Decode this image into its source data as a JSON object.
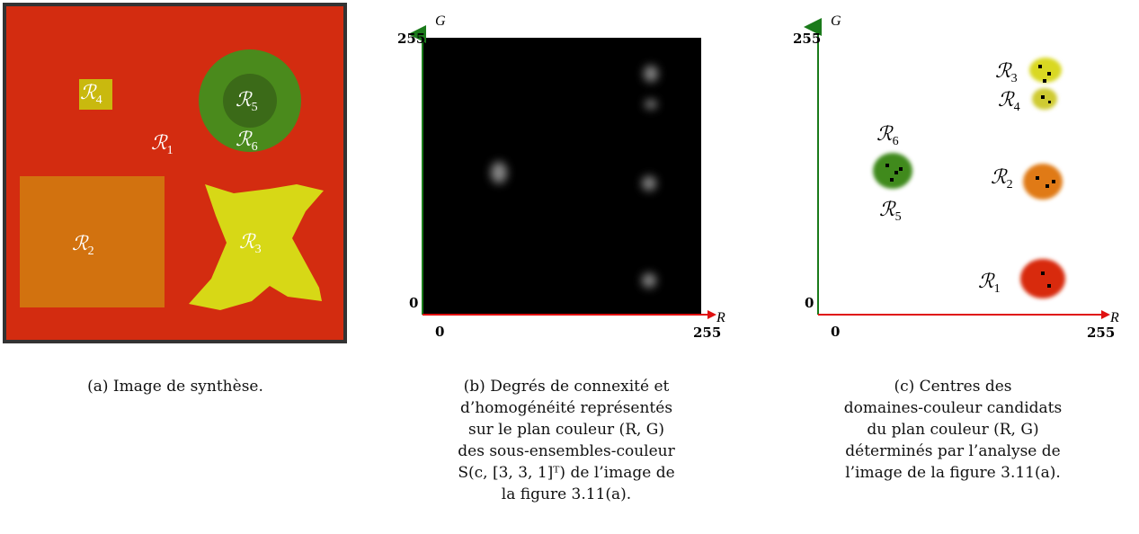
{
  "panel_a": {
    "labels": [
      {
        "base": "ℛ",
        "sub": "1"
      },
      {
        "base": "ℛ",
        "sub": "2"
      },
      {
        "base": "ℛ",
        "sub": "3"
      },
      {
        "base": "ℛ",
        "sub": "4"
      },
      {
        "base": "ℛ",
        "sub": "5"
      },
      {
        "base": "ℛ",
        "sub": "6"
      }
    ],
    "caption": [
      "(a) Image de synthèse."
    ]
  },
  "panel_b": {
    "x_label": "R",
    "y_label": "G",
    "x_ticks": [
      "0",
      "255"
    ],
    "y_ticks": [
      "0",
      "255"
    ],
    "caption": [
      "(b) Degrés de connexité et",
      "d’homogénéité représentés",
      "sur le plan couleur (R, G)",
      "des sous-ensembles-couleur",
      "S(c, [3, 3, 1]ᵀ) de l’image de",
      "la figure 3.11(a)."
    ]
  },
  "panel_c": {
    "x_label": "R",
    "y_label": "G",
    "x_ticks": [
      "0",
      "255"
    ],
    "y_ticks": [
      "0",
      "255"
    ],
    "labels": [
      {
        "base": "ℛ",
        "sub": "3"
      },
      {
        "base": "ℛ",
        "sub": "4"
      },
      {
        "base": "ℛ",
        "sub": "6"
      },
      {
        "base": "ℛ",
        "sub": "2"
      },
      {
        "base": "ℛ",
        "sub": "5"
      },
      {
        "base": "ℛ",
        "sub": "1"
      }
    ],
    "caption": [
      "(c) Centres des",
      "domaines-couleur candidats",
      "du plan couleur (R, G)",
      "déterminés par l’analyse de",
      "l’image de la figure 3.11(a)."
    ]
  }
}
